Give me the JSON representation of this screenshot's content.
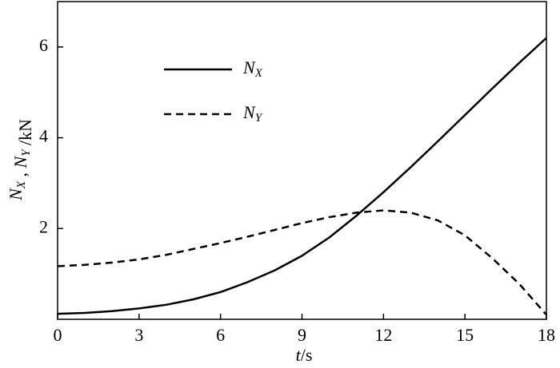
{
  "chart_data": {
    "type": "line",
    "xlabel": "t/s",
    "ylabel": "NX , NY /kN",
    "x": [
      0,
      1,
      2,
      3,
      4,
      5,
      6,
      7,
      8,
      9,
      10,
      11,
      12,
      13,
      14,
      15,
      16,
      17,
      18
    ],
    "series": [
      {
        "name": "NX",
        "color": "#000000",
        "dash": "solid",
        "values": [
          0.12,
          0.14,
          0.18,
          0.24,
          0.32,
          0.44,
          0.6,
          0.82,
          1.08,
          1.4,
          1.8,
          2.28,
          2.8,
          3.35,
          3.92,
          4.5,
          5.08,
          5.65,
          6.2
        ]
      },
      {
        "name": "NY",
        "color": "#000000",
        "dash": "dashed",
        "values": [
          1.17,
          1.2,
          1.25,
          1.32,
          1.42,
          1.55,
          1.68,
          1.82,
          1.97,
          2.12,
          2.25,
          2.35,
          2.4,
          2.35,
          2.18,
          1.85,
          1.35,
          0.78,
          0.1
        ]
      }
    ],
    "xlim": [
      0,
      18
    ],
    "ylim": [
      0,
      7
    ],
    "xticks": [
      0,
      3,
      6,
      9,
      12,
      15,
      18
    ],
    "yticks": [
      2,
      4,
      6
    ]
  }
}
